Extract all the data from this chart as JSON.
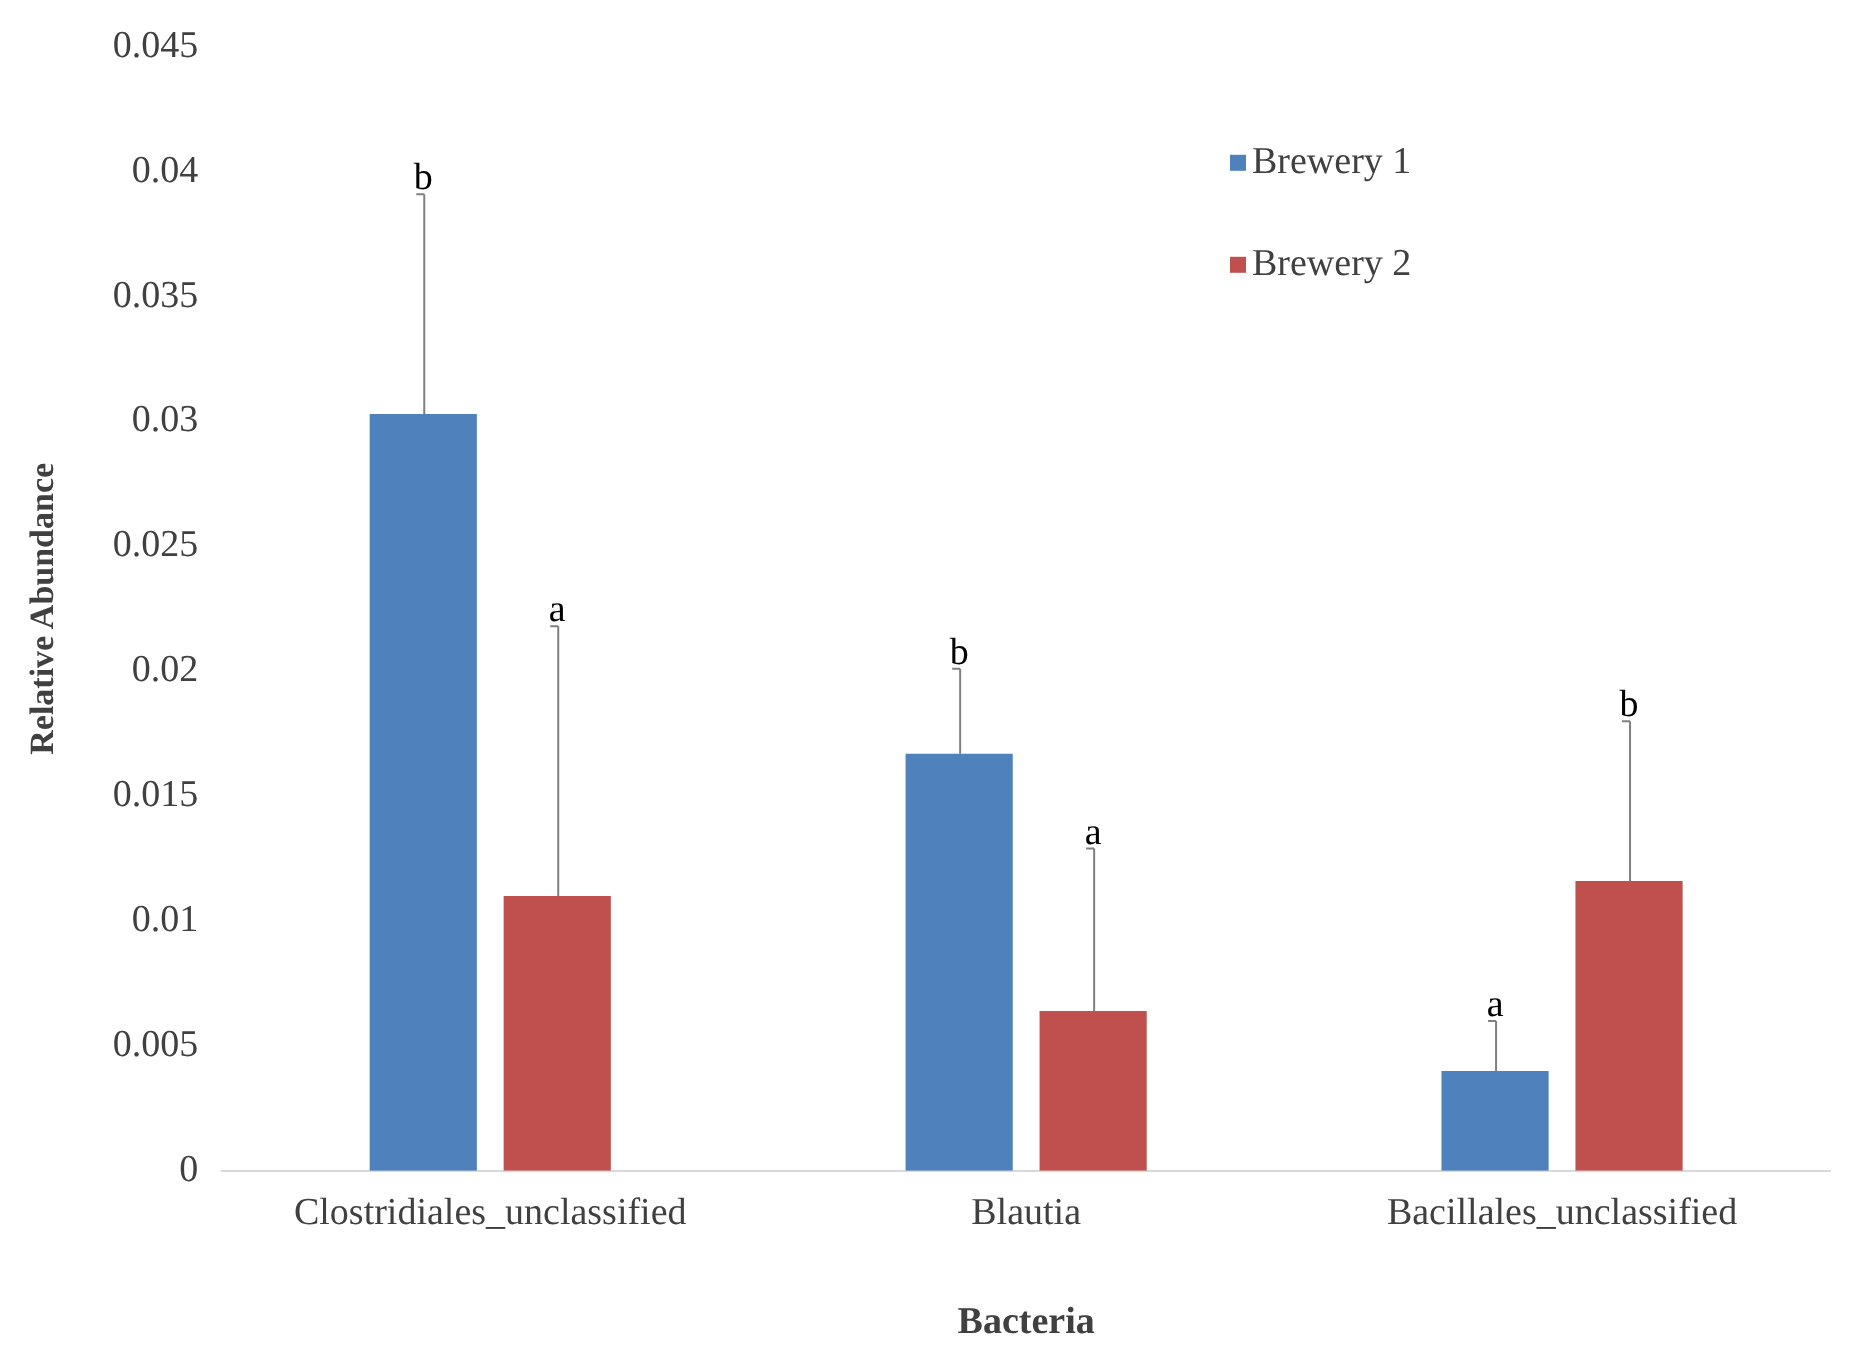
{
  "chart_data": {
    "type": "bar",
    "xlabel": "Bacteria",
    "ylabel": "Relative Abundance",
    "categories": [
      "Clostridiales_unclassified",
      "Blautia",
      "Bacillales_unclassified"
    ],
    "series": [
      {
        "name": "Brewery 1",
        "color": "#4f81bd",
        "values": [
          0.0303,
          0.0167,
          0.004
        ],
        "errors": [
          [
            0.0303,
            0.0391
          ],
          [
            0.0167,
            0.0201
          ],
          [
            0.004,
            0.006
          ]
        ]
      },
      {
        "name": "Brewery 2",
        "color": "#c0504d",
        "values": [
          0.011,
          0.0064,
          0.0116
        ],
        "errors": [
          [
            0.011,
            0.0218
          ],
          [
            0.0064,
            0.0129
          ],
          [
            0.0116,
            0.018
          ]
        ]
      }
    ],
    "annotations": [
      "b",
      "a",
      "b",
      "a",
      "a",
      "b"
    ],
    "ylim": [
      0,
      0.045
    ],
    "yticks": [
      0,
      0.005,
      0.01,
      0.015,
      0.02,
      0.025,
      0.03,
      0.035,
      0.04,
      0.045
    ],
    "grid": false,
    "legend": "top right"
  }
}
